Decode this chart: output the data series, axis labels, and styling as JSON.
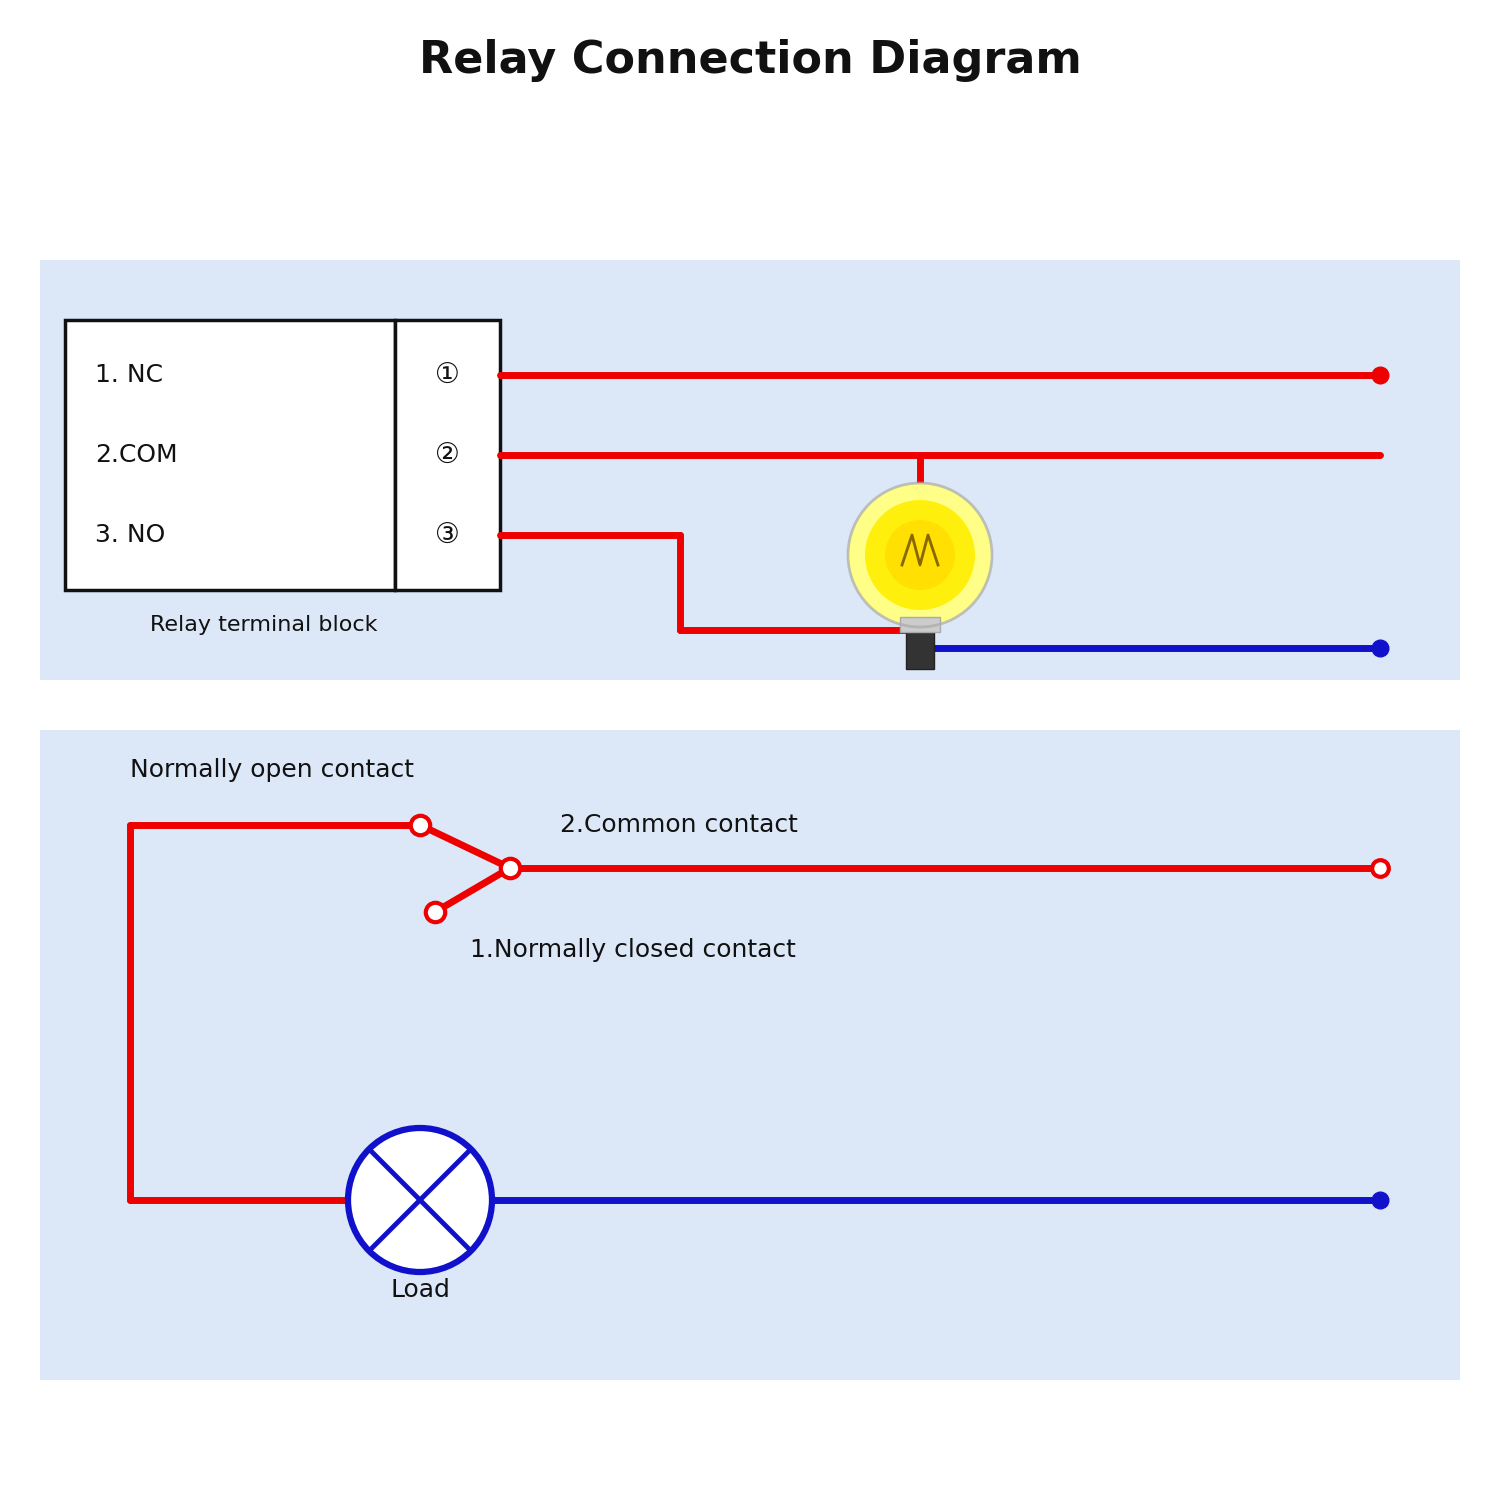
{
  "title": "Relay Connection Diagram",
  "title_fontsize": 32,
  "title_fontweight": "bold",
  "bg_color": "#ffffff",
  "red_color": "#ee0000",
  "blue_color": "#1111cc",
  "black_color": "#111111",
  "panel_bg": "#dce8f8",
  "relay_box_bg": "#ffffff",
  "relay_terminal_text": "Relay terminal block",
  "normally_open_text": "Normally open contact",
  "common_contact_text": "2.Common contact",
  "normally_closed_text": "1.Normally closed contact",
  "load_text": "Load",
  "lw": 5.0,
  "label_fs": 18
}
